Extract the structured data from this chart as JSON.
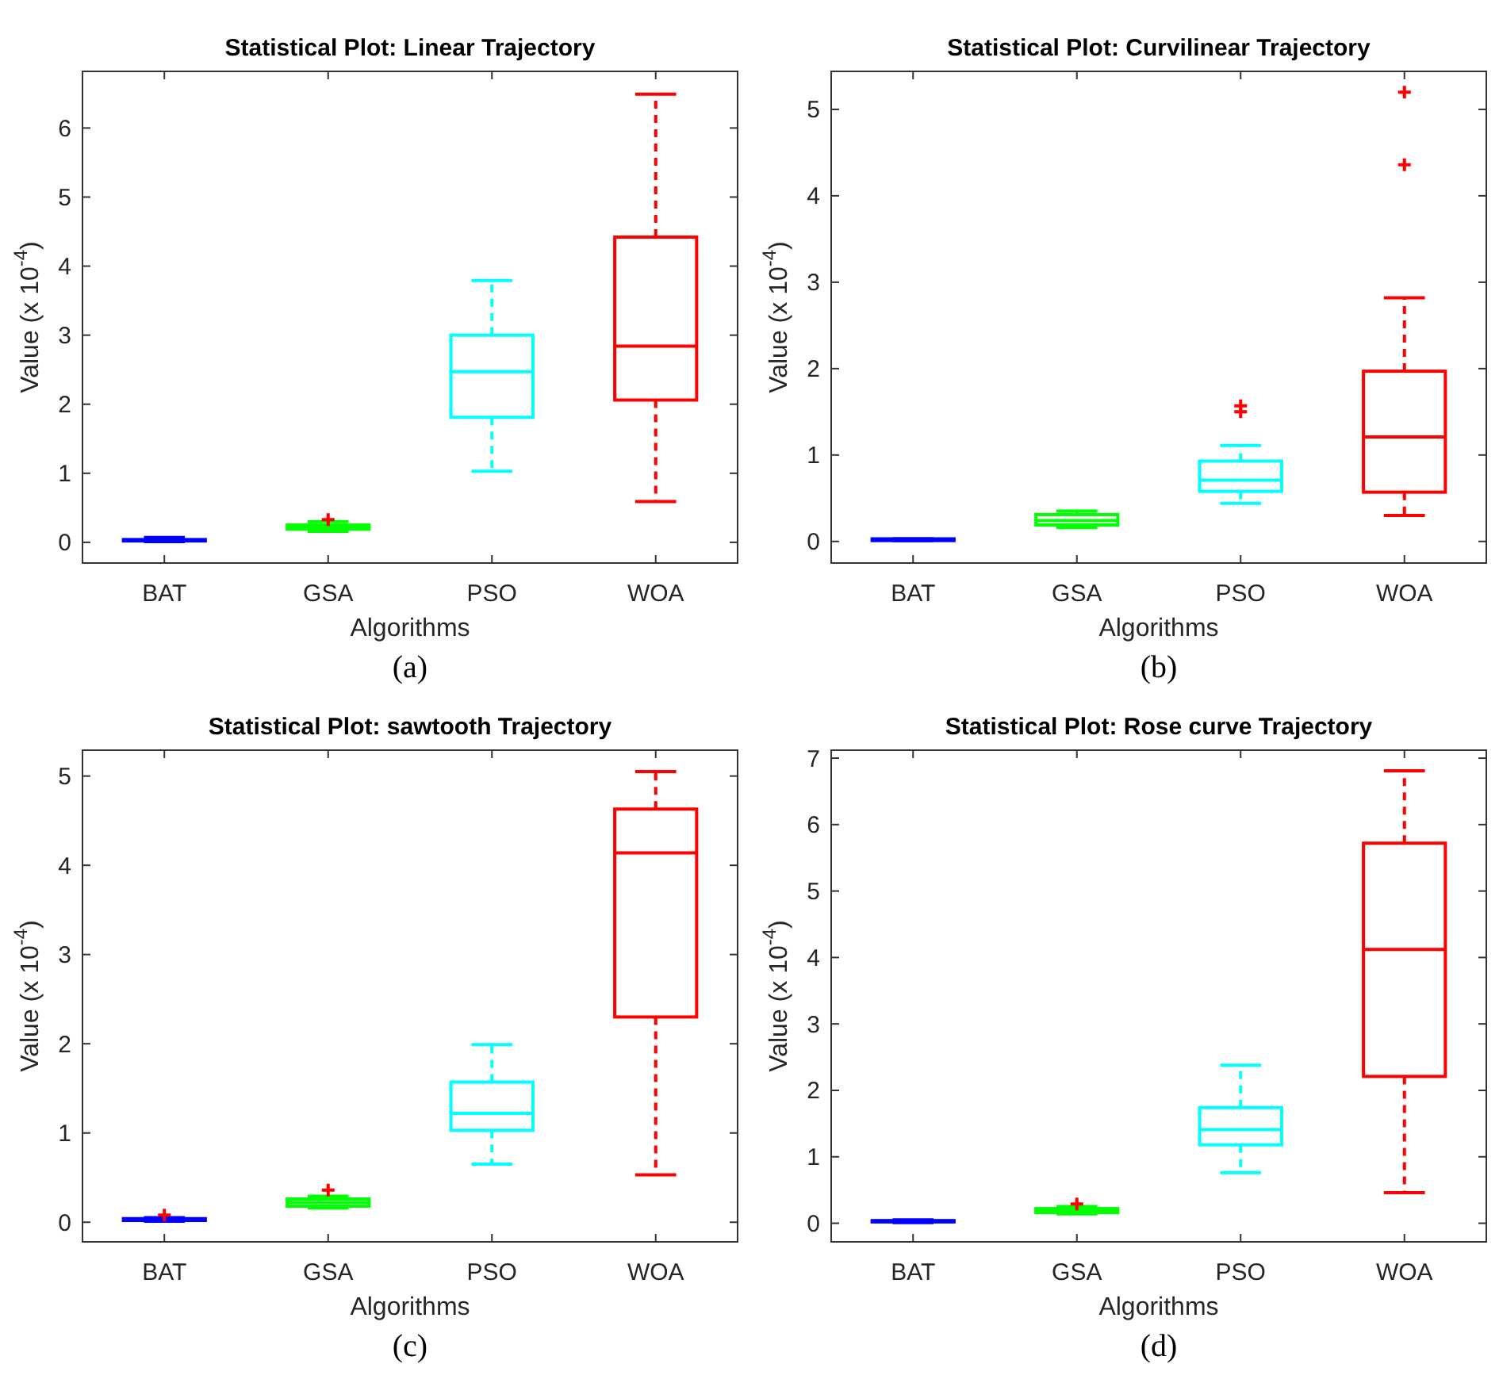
{
  "chart_data": [
    {
      "type": "box",
      "title": "Statistical Plot: Linear Trajectory",
      "xlabel": "Algorithms",
      "ylabel": "Value (x 10$^{-4}$)",
      "annotations": [
        "(a)"
      ],
      "categories": [
        "BAT",
        "GSA",
        "PSO",
        "WOA"
      ],
      "colors": [
        "#0000ff",
        "#00ff00",
        "#00ffff",
        "#ff0000"
      ],
      "ylim": [
        -0.3,
        6.82
      ],
      "yticks": [
        0,
        1,
        2,
        3,
        4,
        5,
        6
      ],
      "grid": false,
      "boxes": [
        {
          "low": 0.01,
          "q1": 0.02,
          "median": 0.03,
          "q3": 0.04,
          "high": 0.07
        },
        {
          "low": 0.16,
          "q1": 0.19,
          "median": 0.22,
          "q3": 0.25,
          "high": 0.3,
          "outliers": [
            0.33
          ]
        },
        {
          "low": 1.03,
          "q1": 1.81,
          "median": 2.47,
          "q3": 3.0,
          "high": 3.79
        },
        {
          "low": 0.59,
          "q1": 2.06,
          "median": 2.84,
          "q3": 4.42,
          "high": 6.49
        }
      ]
    },
    {
      "type": "box",
      "title": "Statistical Plot: Curvilinear Trajectory",
      "xlabel": "Algorithms",
      "ylabel": "Value (x 10$^{-4}$)",
      "annotations": [
        "(b)"
      ],
      "categories": [
        "BAT",
        "GSA",
        "PSO",
        "WOA"
      ],
      "colors": [
        "#0000ff",
        "#00ff00",
        "#00ffff",
        "#ff0000"
      ],
      "ylim": [
        -0.25,
        5.44
      ],
      "yticks": [
        0,
        1,
        2,
        3,
        4,
        5
      ],
      "grid": false,
      "boxes": [
        {
          "low": 0.01,
          "q1": 0.01,
          "median": 0.02,
          "q3": 0.03,
          "high": 0.03
        },
        {
          "low": 0.16,
          "q1": 0.19,
          "median": 0.24,
          "q3": 0.31,
          "high": 0.35
        },
        {
          "low": 0.44,
          "q1": 0.58,
          "median": 0.71,
          "q3": 0.93,
          "high": 1.11,
          "outliers": [
            1.5,
            1.57
          ]
        },
        {
          "low": 0.3,
          "q1": 0.57,
          "median": 1.21,
          "q3": 1.97,
          "high": 2.82,
          "outliers": [
            4.36,
            5.2
          ]
        }
      ]
    },
    {
      "type": "box",
      "title": "Statistical Plot: sawtooth Trajectory",
      "xlabel": "Algorithms",
      "ylabel": "Value (x 10$^{-4}$)",
      "annotations": [
        "(c)"
      ],
      "categories": [
        "BAT",
        "GSA",
        "PSO",
        "WOA"
      ],
      "colors": [
        "#0000ff",
        "#00ff00",
        "#00ffff",
        "#ff0000"
      ],
      "ylim": [
        -0.22,
        5.29
      ],
      "yticks": [
        0,
        1,
        2,
        3,
        4,
        5
      ],
      "grid": false,
      "boxes": [
        {
          "low": 0.01,
          "q1": 0.02,
          "median": 0.03,
          "q3": 0.04,
          "high": 0.05,
          "outliers": [
            0.08
          ]
        },
        {
          "low": 0.16,
          "q1": 0.18,
          "median": 0.22,
          "q3": 0.26,
          "high": 0.29,
          "outliers": [
            0.36
          ]
        },
        {
          "low": 0.65,
          "q1": 1.03,
          "median": 1.22,
          "q3": 1.57,
          "high": 1.99
        },
        {
          "low": 0.53,
          "q1": 2.3,
          "median": 4.14,
          "q3": 4.63,
          "high": 5.05
        }
      ]
    },
    {
      "type": "box",
      "title": "Statistical Plot: Rose curve Trajectory",
      "xlabel": "Algorithms",
      "ylabel": "Value (x 10$^{-4}$)",
      "annotations": [
        "(d)"
      ],
      "categories": [
        "BAT",
        "GSA",
        "PSO",
        "WOA"
      ],
      "colors": [
        "#0000ff",
        "#00ff00",
        "#00ffff",
        "#ff0000"
      ],
      "ylim": [
        -0.28,
        7.12
      ],
      "yticks": [
        0,
        1,
        2,
        3,
        4,
        5,
        6,
        7
      ],
      "grid": false,
      "boxes": [
        {
          "low": 0.01,
          "q1": 0.02,
          "median": 0.03,
          "q3": 0.04,
          "high": 0.05
        },
        {
          "low": 0.14,
          "q1": 0.16,
          "median": 0.19,
          "q3": 0.22,
          "high": 0.25,
          "outliers": [
            0.29
          ]
        },
        {
          "low": 0.76,
          "q1": 1.18,
          "median": 1.41,
          "q3": 1.74,
          "high": 2.38
        },
        {
          "low": 0.46,
          "q1": 2.21,
          "median": 4.12,
          "q3": 5.72,
          "high": 6.81
        }
      ]
    }
  ]
}
